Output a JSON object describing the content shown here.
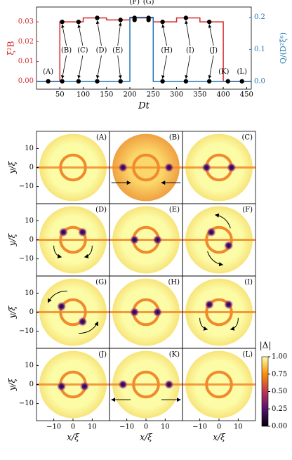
{
  "top_chart": {
    "type": "line",
    "xlabel": "Dt",
    "ylabel": "ξ²B",
    "y2label": "Q/(D²ξ⁶)",
    "xlim": [
      0,
      460
    ],
    "xticks": [
      50,
      100,
      150,
      200,
      250,
      300,
      350,
      400,
      450
    ],
    "ylim": [
      -0.004,
      0.0375
    ],
    "yticks": [
      {
        "value": 0,
        "label": "0.00"
      },
      {
        "value": 0.01,
        "label": "0.01"
      },
      {
        "value": 0.02,
        "label": "0.02"
      },
      {
        "value": 0.03,
        "label": "0.03"
      }
    ],
    "y2lim": [
      -0.024,
      0.232
    ],
    "y2ticks": [
      {
        "value": 0,
        "label": "0.0"
      },
      {
        "value": 0.1,
        "label": "0.1"
      },
      {
        "value": 0.2,
        "label": "0.2"
      }
    ],
    "series": [
      {
        "color": "#d62728",
        "x": [
          0,
          50,
          50,
          100,
          100,
          150,
          150,
          200,
          200,
          250,
          250,
          300,
          300,
          350,
          350,
          400,
          400,
          460
        ],
        "values": [
          0,
          0,
          0.03,
          0.03,
          0.032,
          0.032,
          0.031,
          0.031,
          0.032,
          0.032,
          0.03,
          0.03,
          0.032,
          0.032,
          0.03,
          0.03,
          0,
          0
        ]
      },
      {
        "color": "#1f77b4",
        "axis": "y2",
        "x": [
          0,
          200,
          200,
          250,
          250,
          460
        ],
        "values": [
          0,
          0,
          0.2,
          0.2,
          0,
          0
        ]
      }
    ],
    "points": {
      "x": [
        25,
        55,
        55,
        90,
        90,
        130,
        130,
        180,
        180,
        210,
        210,
        240,
        240,
        270,
        270,
        320,
        320,
        370,
        370,
        410,
        440
      ],
      "values": [
        0,
        0.03,
        0,
        0.03,
        0,
        0.032,
        0,
        0.031,
        0,
        0.032,
        0.031,
        0.032,
        0.031,
        0.03,
        0,
        0.032,
        0,
        0.03,
        0,
        0,
        0
      ]
    },
    "events": [
      {
        "label": "(A)",
        "dt": 25
      },
      {
        "label": "(B)",
        "dt": 55
      },
      {
        "label": "(C)",
        "dt": 90
      },
      {
        "label": "(D)",
        "dt": 130
      },
      {
        "label": "(E)",
        "dt": 180
      },
      {
        "label": "(F)",
        "dt": 210
      },
      {
        "label": "(G)",
        "dt": 240
      },
      {
        "label": "(H)",
        "dt": 270
      },
      {
        "label": "(I)",
        "dt": 320
      },
      {
        "label": "(J)",
        "dt": 370
      },
      {
        "label": "(K)",
        "dt": 410
      },
      {
        "label": "(L)",
        "dt": 440
      }
    ]
  },
  "panels": {
    "labels": [
      "(A)",
      "(B)",
      "(C)",
      "(D)",
      "(E)",
      "(F)",
      "(G)",
      "(H)",
      "(I)",
      "(J)",
      "(K)",
      "(L)"
    ],
    "xlabel": "x/ξ",
    "ylabel": "y/ξ",
    "lim": [
      -19,
      19
    ],
    "ticks": [
      {
        "value": -10,
        "label": "−10"
      },
      0,
      10
    ]
  },
  "colorbar": {
    "label": "|Δ|",
    "lim": [
      0,
      1
    ],
    "ticks": [
      {
        "value": 0,
        "label": "0.00"
      },
      {
        "value": 0.25,
        "label": "0.25"
      },
      {
        "value": 0.5,
        "label": "0.50"
      },
      {
        "value": 0.75,
        "label": "0.75"
      },
      {
        "value": 1,
        "label": "1.00"
      }
    ]
  }
}
